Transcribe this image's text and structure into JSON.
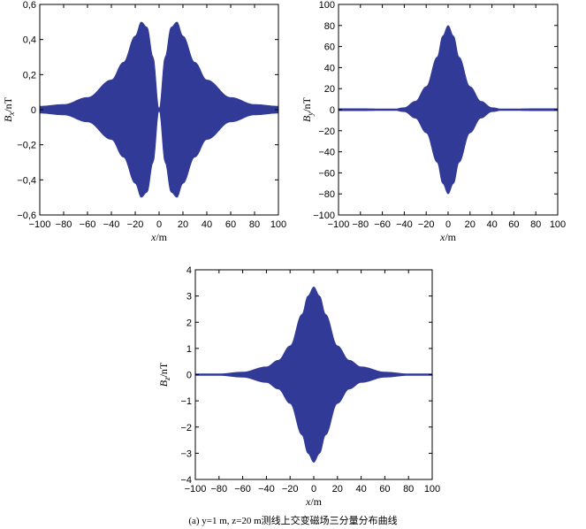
{
  "caption": "(a) y=1 m, z=20 m测线上交变磁场三分量分布曲线",
  "fill_color": "#323a98",
  "chart_data": [
    {
      "type": "area",
      "id": "bx",
      "ylabel_main": "B",
      "ylabel_sub": "x",
      "ylabel_unit": "/nT",
      "xlabel_main": "x",
      "xlabel_unit": "/m",
      "show_xlabel": false,
      "xlim": [
        -100,
        100
      ],
      "ylim": [
        -0.6,
        0.6
      ],
      "xticks": [
        -100,
        -80,
        -60,
        -40,
        -20,
        0,
        20,
        40,
        60,
        80,
        100
      ],
      "xtick_labels": [
        "−100",
        "−80",
        "−60",
        "−40",
        "−20",
        "0",
        "20",
        "40",
        "60",
        "80",
        "100"
      ],
      "yticks": [
        -0.6,
        -0.4,
        -0.2,
        0,
        0.2,
        0.4,
        0.6
      ],
      "ytick_labels": [
        "−0,6",
        "−0,4",
        "−0,2",
        "0",
        "0,2",
        "0,4",
        "0,6"
      ],
      "x": [
        -100,
        -80,
        -60,
        -40,
        -30,
        -20,
        -15,
        -10,
        -5,
        0,
        5,
        10,
        15,
        20,
        30,
        40,
        60,
        80,
        100
      ],
      "envelope": [
        0.02,
        0.03,
        0.07,
        0.17,
        0.27,
        0.42,
        0.5,
        0.47,
        0.3,
        0,
        0.3,
        0.47,
        0.5,
        0.42,
        0.27,
        0.17,
        0.07,
        0.03,
        0.02
      ]
    },
    {
      "type": "area",
      "id": "by",
      "ylabel_main": "B",
      "ylabel_sub": "y",
      "ylabel_unit": "/nT",
      "xlabel_main": "x",
      "xlabel_unit": "/m",
      "show_xlabel": true,
      "xlim": [
        -100,
        100
      ],
      "ylim": [
        -100,
        100
      ],
      "xticks": [
        -100,
        -80,
        -60,
        -40,
        -20,
        0,
        20,
        40,
        60,
        80,
        100
      ],
      "xtick_labels": [
        "−100",
        "−80",
        "−60",
        "−40",
        "−20",
        "0",
        "20",
        "40",
        "60",
        "80",
        "100"
      ],
      "yticks": [
        -100,
        -80,
        -60,
        -40,
        -20,
        0,
        20,
        40,
        60,
        80,
        100
      ],
      "ytick_labels": [
        "−100",
        "−80",
        "−60",
        "−40",
        "−20",
        "0",
        "20",
        "40",
        "60",
        "80",
        "100"
      ],
      "x": [
        -100,
        -80,
        -60,
        -50,
        -40,
        -30,
        -20,
        -10,
        -5,
        0,
        5,
        10,
        20,
        30,
        40,
        50,
        60,
        80,
        100
      ],
      "envelope": [
        1,
        1,
        0.8,
        0.4,
        2,
        8,
        22,
        50,
        70,
        80,
        70,
        50,
        22,
        8,
        2,
        0.4,
        0.8,
        1,
        1
      ]
    },
    {
      "type": "area",
      "id": "bz",
      "ylabel_main": "B",
      "ylabel_sub": "z",
      "ylabel_unit": "/nT",
      "xlabel_main": "x",
      "xlabel_unit": "/m",
      "show_xlabel": false,
      "xlim": [
        -100,
        100
      ],
      "ylim": [
        -4,
        4
      ],
      "xticks": [
        -100,
        -80,
        -60,
        -40,
        -20,
        0,
        20,
        40,
        60,
        80,
        100
      ],
      "xtick_labels": [
        "−100",
        "−80",
        "−60",
        "−40",
        "−20",
        "0",
        "20",
        "40",
        "60",
        "80",
        "100"
      ],
      "yticks": [
        -4,
        -3,
        -2,
        -1,
        0,
        1,
        2,
        3,
        4
      ],
      "ytick_labels": [
        "−4",
        "−3",
        "−2",
        "−1",
        "0",
        "1",
        "2",
        "3",
        "4"
      ],
      "x": [
        -100,
        -80,
        -60,
        -40,
        -30,
        -20,
        -10,
        -5,
        0,
        5,
        10,
        20,
        30,
        40,
        60,
        80,
        100
      ],
      "envelope": [
        0.01,
        0.03,
        0.1,
        0.3,
        0.55,
        1.1,
        2.3,
        3.0,
        3.35,
        3.0,
        2.3,
        1.1,
        0.55,
        0.3,
        0.1,
        0.03,
        0.01
      ]
    }
  ]
}
